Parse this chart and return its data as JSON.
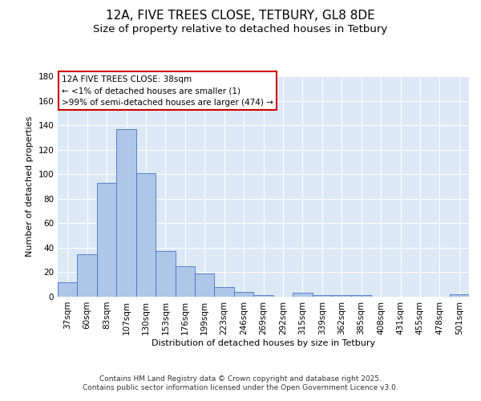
{
  "title": "12A, FIVE TREES CLOSE, TETBURY, GL8 8DE",
  "subtitle": "Size of property relative to detached houses in Tetbury",
  "xlabel": "Distribution of detached houses by size in Tetbury",
  "ylabel": "Number of detached properties",
  "bin_labels": [
    "37sqm",
    "60sqm",
    "83sqm",
    "107sqm",
    "130sqm",
    "153sqm",
    "176sqm",
    "199sqm",
    "223sqm",
    "246sqm",
    "269sqm",
    "292sqm",
    "315sqm",
    "339sqm",
    "362sqm",
    "385sqm",
    "408sqm",
    "431sqm",
    "455sqm",
    "478sqm",
    "501sqm"
  ],
  "values": [
    12,
    35,
    93,
    137,
    101,
    37,
    25,
    19,
    8,
    4,
    1,
    0,
    3,
    1,
    1,
    1,
    0,
    0,
    0,
    0,
    2
  ],
  "bar_color": "#aec6e8",
  "bar_edgecolor": "#4472c4",
  "background_color": "#dce8f5",
  "annotation_box_text": "12A FIVE TREES CLOSE: 38sqm\n← <1% of detached houses are smaller (1)\n>99% of semi-detached houses are larger (474) →",
  "annotation_box_color": "#ffffff",
  "annotation_box_edgecolor": "#cc0000",
  "ylim": [
    0,
    180
  ],
  "yticks": [
    0,
    20,
    40,
    60,
    80,
    100,
    120,
    140,
    160,
    180
  ],
  "footer_text": "Contains HM Land Registry data © Crown copyright and database right 2025.\nContains public sector information licensed under the Open Government Licence v3.0.",
  "title_fontsize": 11,
  "subtitle_fontsize": 9.5,
  "axis_label_fontsize": 8,
  "tick_fontsize": 7.5,
  "annotation_fontsize": 7.5,
  "footer_fontsize": 6.5
}
